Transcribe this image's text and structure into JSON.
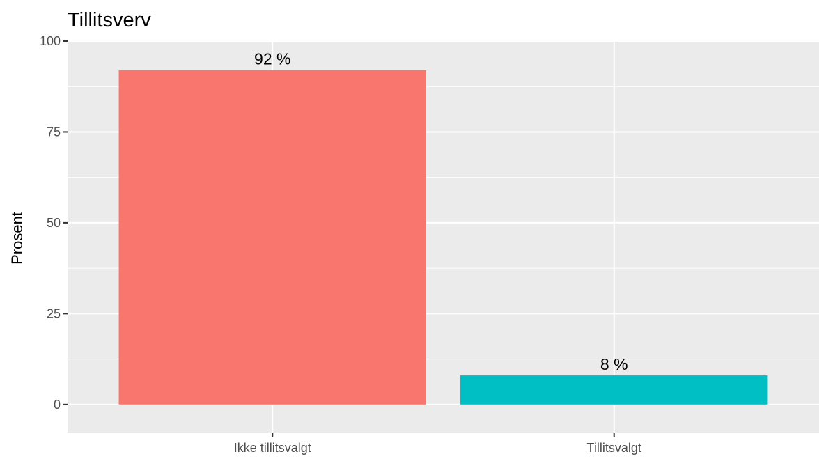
{
  "chart_data": {
    "type": "bar",
    "title": "Tillitsverv",
    "xlabel": "",
    "ylabel": "Prosent",
    "categories": [
      "Ikke tillitsvalgt",
      "Tillitsvalgt"
    ],
    "values": [
      92,
      8
    ],
    "data_labels": [
      "92 %",
      "8 %"
    ],
    "colors": [
      "#F8766D",
      "#00BFC4"
    ],
    "ylim": [
      -7.7,
      100
    ],
    "yticks": [
      0,
      25,
      50,
      75,
      100
    ],
    "ytick_labels": [
      "0",
      "25",
      "50",
      "75",
      "100"
    ],
    "grid": true,
    "legend": "none",
    "panel_background": "#EBEBEB",
    "grid_color": "#FFFFFF"
  }
}
